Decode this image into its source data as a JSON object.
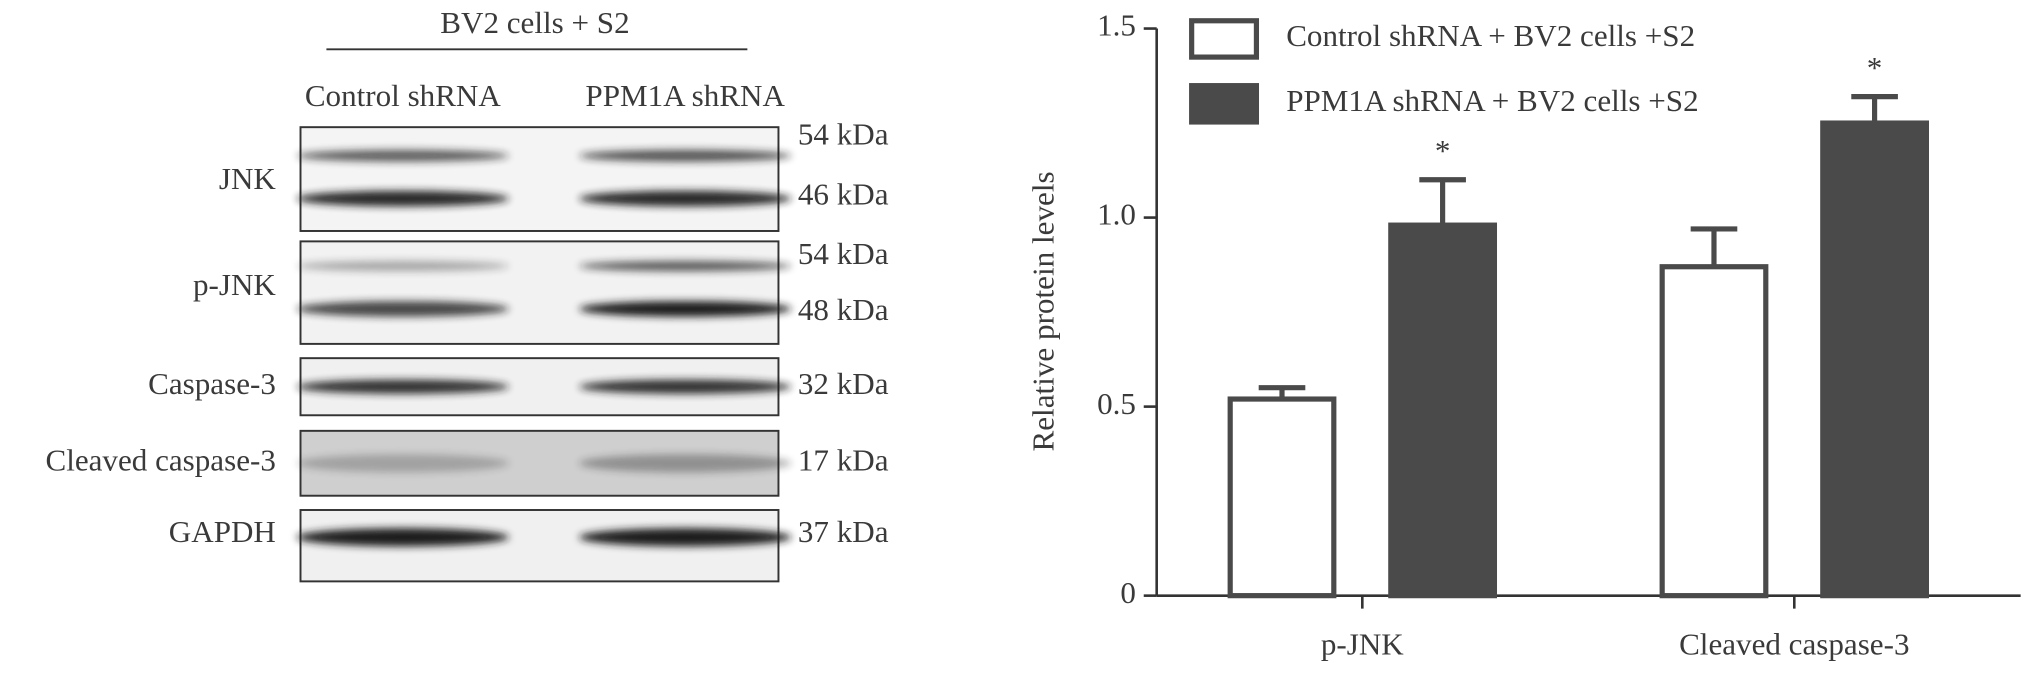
{
  "blot": {
    "header": "BV2 cells + S2",
    "lanes": [
      "Control shRNA",
      "PPM1A shRNA"
    ],
    "rows": [
      {
        "label": "JNK",
        "sizes": [
          "54 kDa",
          "46 kDa"
        ]
      },
      {
        "label": "p-JNK",
        "sizes": [
          "54 kDa",
          "48 kDa"
        ]
      },
      {
        "label": "Caspase-3",
        "sizes": [
          "32 kDa"
        ]
      },
      {
        "label": "Cleaved caspase-3",
        "sizes": [
          "17 kDa"
        ]
      },
      {
        "label": "GAPDH",
        "sizes": [
          "37 kDa"
        ]
      }
    ]
  },
  "chart_data": {
    "type": "bar",
    "y_label": "Relative protein levels",
    "categories": [
      "p-JNK",
      "Cleaved caspase-3"
    ],
    "series": [
      {
        "name": "Control shRNA + BV2 cells +S2",
        "color": "#ffffff",
        "edge": "#4a4a4a",
        "values": [
          0.52,
          0.87
        ],
        "errors": [
          0.03,
          0.1
        ]
      },
      {
        "name": "PPM1A shRNA + BV2 cells +S2",
        "color": "#4a4a4a",
        "edge": "#4a4a4a",
        "values": [
          0.98,
          1.25
        ],
        "errors": [
          0.12,
          0.07
        ],
        "significance": [
          "*",
          "*"
        ]
      }
    ],
    "ylim": [
      0,
      1.5
    ],
    "yticks": [
      0,
      0.5,
      {
        "value": 1,
        "label": "1.0"
      },
      1.5
    ],
    "grid": false,
    "legend": "top"
  }
}
